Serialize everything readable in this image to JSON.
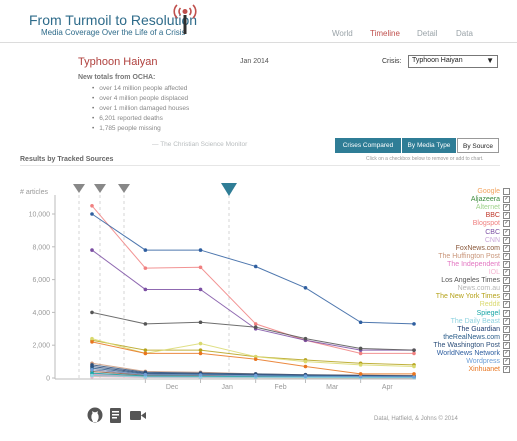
{
  "header": {
    "title": "From Turmoil to Resolution",
    "subtitle": "Media Coverage Over the Life of a Crisis",
    "nav": [
      {
        "label": "World",
        "active": false
      },
      {
        "label": "Timeline",
        "active": true
      },
      {
        "label": "Detail",
        "active": false
      },
      {
        "label": "Data",
        "active": false
      }
    ]
  },
  "crisis": {
    "title": "Typhoon Haiyan",
    "date": "Jan 2014",
    "select_label": "Crisis:",
    "select_value": "Typhoon Haiyan",
    "facts_heading": "New totals from OCHA:",
    "facts": [
      "over 14 million people affected",
      "over 4 million people displaced",
      "over 1 million damaged houses",
      "6,201 reported deaths",
      "1,785 people missing"
    ],
    "credit": "— The Christian Science Monitor"
  },
  "mode_buttons": [
    "Crises Compared",
    "By Media Type",
    "By Source"
  ],
  "results": {
    "heading": "Results by Tracked Sources",
    "hint": "Click on a checkbox below to remove or add to chart."
  },
  "colors": {
    "accent": "#2f7d96",
    "title": "#2e6b8a",
    "crisis_title": "#b0413e",
    "nav_active": "#c0504d"
  },
  "chart_data": {
    "type": "line",
    "ylabel": "# articles",
    "yticks": [
      "0",
      "2,000",
      "4,000",
      "6,000",
      "8,000",
      "10,000"
    ],
    "ylim": [
      0,
      11000
    ],
    "xticks": [
      "Dec",
      "Jan",
      "Feb",
      "Mar",
      "Apr"
    ],
    "x": [
      "2013-11-01",
      "2013-12-01",
      "2014-01-01",
      "2014-02-01",
      "2014-03-01",
      "2014-04-01",
      "2014-05-01"
    ],
    "markers": 4,
    "highlighted_marker": 3,
    "grid": false,
    "legend_position": "right",
    "series": [
      {
        "name": "Google",
        "color": "#f2a35e",
        "checked": false,
        "values": [
          null,
          null,
          null,
          null,
          null,
          null,
          null
        ]
      },
      {
        "name": "Aljazeera",
        "color": "#3d8b3d",
        "checked": true,
        "values": [
          150,
          60,
          40,
          30,
          20,
          20,
          15
        ]
      },
      {
        "name": "Alternet",
        "color": "#9fd28b",
        "checked": true,
        "values": [
          100,
          40,
          30,
          20,
          15,
          10,
          10
        ]
      },
      {
        "name": "BBC",
        "color": "#c0392b",
        "checked": true,
        "values": [
          500,
          200,
          150,
          120,
          90,
          70,
          60
        ]
      },
      {
        "name": "Blogspot",
        "color": "#f08080",
        "checked": true,
        "values": [
          10500,
          6700,
          6750,
          3300,
          2300,
          1500,
          1500
        ]
      },
      {
        "name": "CBC",
        "color": "#7b4fa3",
        "checked": true,
        "values": [
          7800,
          5400,
          5400,
          3000,
          2300,
          1700,
          1700
        ]
      },
      {
        "name": "CNN",
        "color": "#c9a6d8",
        "checked": true,
        "values": [
          300,
          130,
          110,
          90,
          70,
          60,
          50
        ]
      },
      {
        "name": "FoxNews.com",
        "color": "#8b5a3c",
        "checked": true,
        "values": [
          400,
          170,
          140,
          110,
          90,
          70,
          60
        ]
      },
      {
        "name": "The Huffington Post",
        "color": "#c9967a",
        "checked": true,
        "values": [
          900,
          400,
          350,
          250,
          200,
          180,
          150
        ]
      },
      {
        "name": "The Independent",
        "color": "#e377c2",
        "checked": true,
        "values": [
          200,
          90,
          80,
          60,
          50,
          40,
          30
        ]
      },
      {
        "name": "IOL",
        "color": "#f7b6d2",
        "checked": true,
        "values": [
          80,
          30,
          25,
          20,
          15,
          12,
          10
        ]
      },
      {
        "name": "Los Angeles Times",
        "color": "#555555",
        "checked": true,
        "values": [
          4000,
          3300,
          3400,
          3100,
          2400,
          1800,
          1700
        ]
      },
      {
        "name": "News.com.au",
        "color": "#b5b5b5",
        "checked": true,
        "values": [
          250,
          110,
          90,
          70,
          60,
          50,
          40
        ]
      },
      {
        "name": "The New York Times",
        "color": "#b5a21a",
        "checked": true,
        "values": [
          2300,
          1700,
          1700,
          1300,
          1100,
          900,
          800
        ]
      },
      {
        "name": "Reddit",
        "color": "#d9d96e",
        "checked": true,
        "values": [
          2400,
          1500,
          2100,
          1300,
          1000,
          800,
          700
        ]
      },
      {
        "name": "Spiegel",
        "color": "#17a6a6",
        "checked": true,
        "values": [
          300,
          120,
          100,
          80,
          60,
          50,
          40
        ]
      },
      {
        "name": "The Daily Beast",
        "color": "#8fd3e0",
        "checked": true,
        "values": [
          150,
          60,
          50,
          40,
          30,
          25,
          20
        ]
      },
      {
        "name": "The Guardian",
        "color": "#1f3f73",
        "checked": true,
        "values": [
          700,
          300,
          250,
          200,
          150,
          120,
          100
        ]
      },
      {
        "name": "theRealNews.com",
        "color": "#2b5d8a",
        "checked": true,
        "values": [
          600,
          250,
          220,
          180,
          140,
          110,
          90
        ]
      },
      {
        "name": "The Washington Post",
        "color": "#2d4f7a",
        "checked": true,
        "values": [
          800,
          350,
          300,
          250,
          200,
          160,
          140
        ]
      },
      {
        "name": "WorldNews Network",
        "color": "#2f5fa0",
        "checked": true,
        "values": [
          10000,
          7800,
          7800,
          6800,
          5500,
          3400,
          3300
        ]
      },
      {
        "name": "Wordpress",
        "color": "#6fa0d8",
        "checked": true,
        "values": [
          500,
          200,
          180,
          140,
          110,
          90,
          80
        ]
      },
      {
        "name": "Xinhuanet",
        "color": "#e8741e",
        "checked": true,
        "values": [
          2200,
          1500,
          1500,
          1150,
          700,
          250,
          250
        ]
      }
    ]
  },
  "footer": {
    "icons": [
      "github-icon",
      "book-icon",
      "video-icon"
    ],
    "credit": "Datal, Hatfield, & Johns © 2014"
  }
}
